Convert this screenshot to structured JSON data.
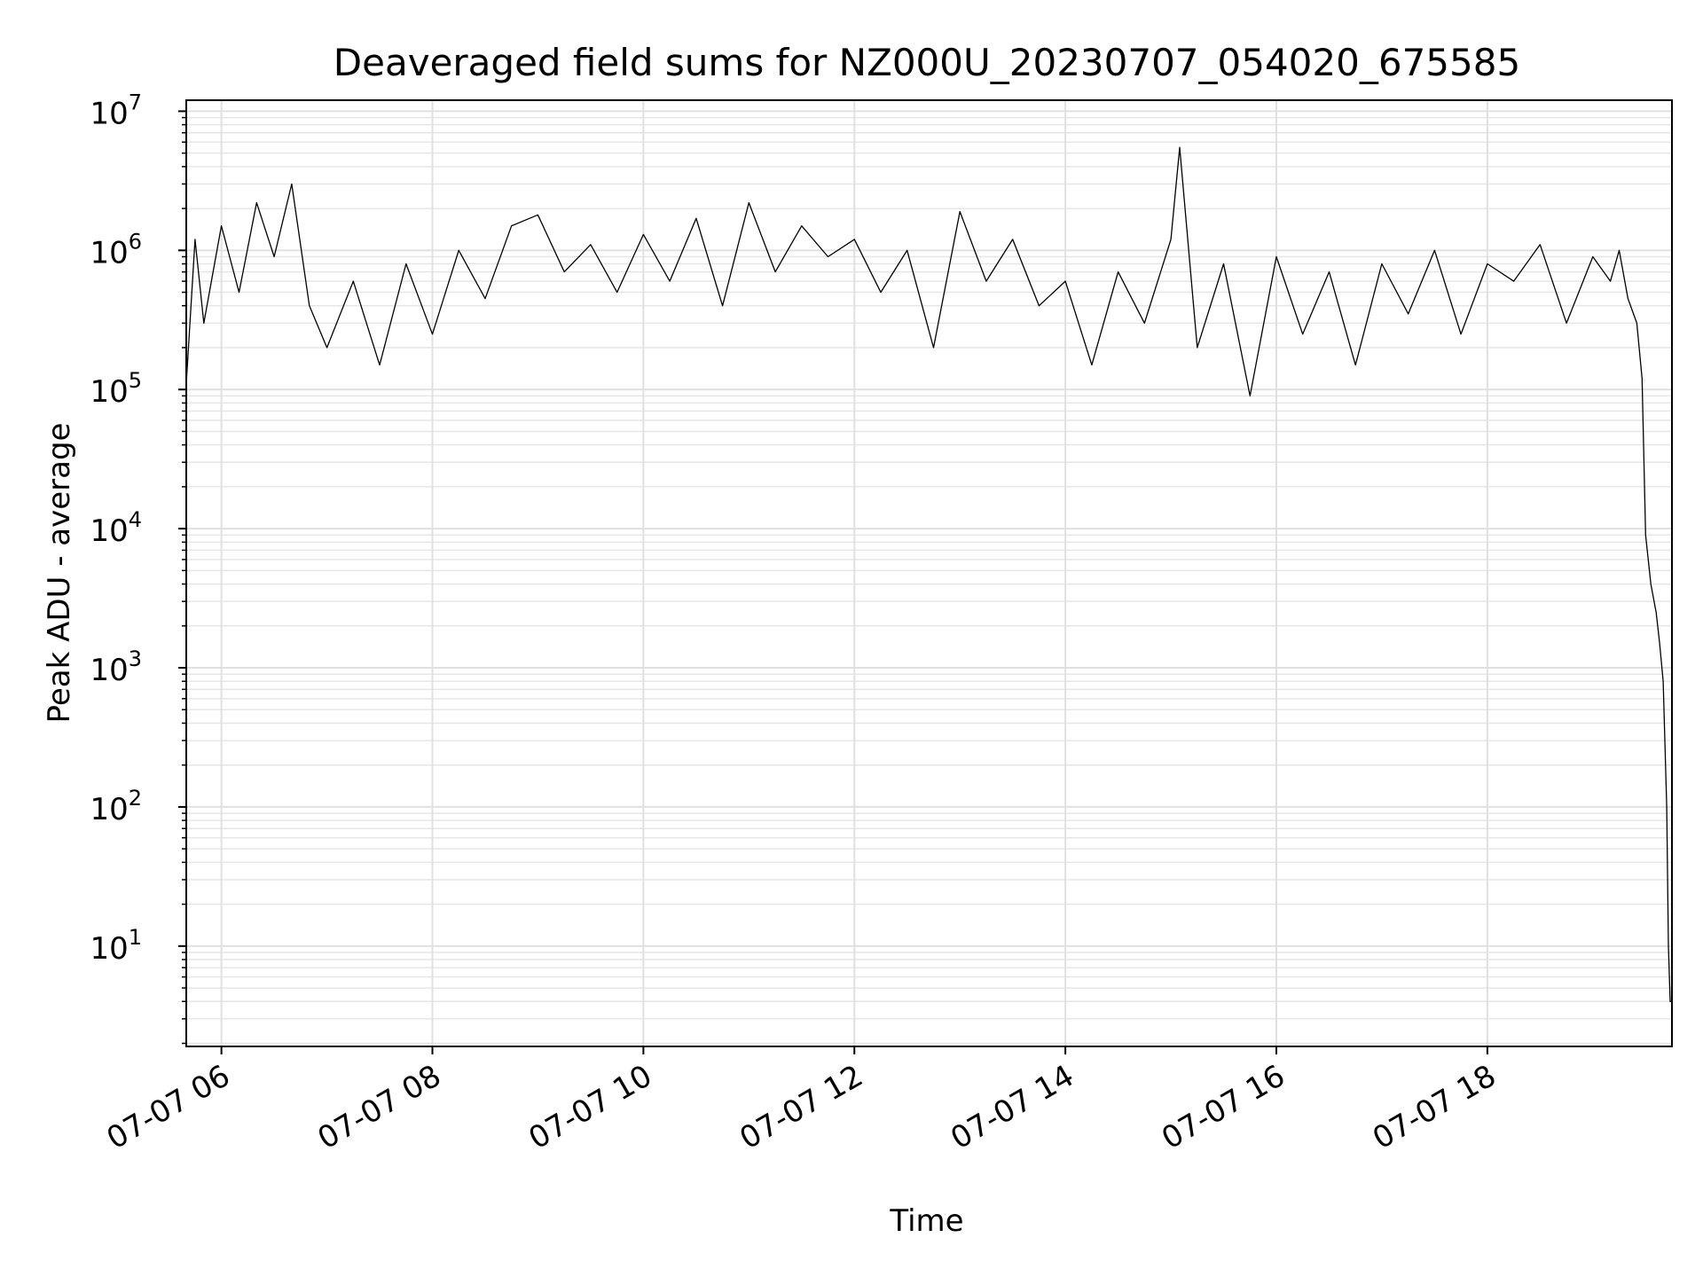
{
  "chart_data": {
    "type": "line",
    "title": "Deaveraged field sums for NZ000U_20230707_054020_675585",
    "xlabel": "Time",
    "ylabel": "Peak ADU - average",
    "x_scale": "time",
    "y_scale": "log",
    "xlim": [
      "2023-07-07 05:40",
      "2023-07-07 19:45"
    ],
    "ylim": [
      1.9,
      12000000
    ],
    "x_ticks": [
      {
        "value": "2023-07-07 06:00",
        "label": "07-07 06"
      },
      {
        "value": "2023-07-07 08:00",
        "label": "07-07 08"
      },
      {
        "value": "2023-07-07 10:00",
        "label": "07-07 10"
      },
      {
        "value": "2023-07-07 12:00",
        "label": "07-07 12"
      },
      {
        "value": "2023-07-07 14:00",
        "label": "07-07 14"
      },
      {
        "value": "2023-07-07 16:00",
        "label": "07-07 16"
      },
      {
        "value": "2023-07-07 18:00",
        "label": "07-07 18"
      }
    ],
    "y_ticks": [
      {
        "value": 10,
        "base": "10",
        "exp": "1"
      },
      {
        "value": 100,
        "base": "10",
        "exp": "2"
      },
      {
        "value": 1000,
        "base": "10",
        "exp": "3"
      },
      {
        "value": 10000,
        "base": "10",
        "exp": "4"
      },
      {
        "value": 100000,
        "base": "10",
        "exp": "5"
      },
      {
        "value": 1000000,
        "base": "10",
        "exp": "6"
      },
      {
        "value": 10000000,
        "base": "10",
        "exp": "7"
      }
    ],
    "grid": true,
    "grid_minor": true,
    "legend": "none",
    "series": [
      {
        "color": "#000000",
        "x": [
          "2023-07-07 05:40",
          "2023-07-07 05:45",
          "2023-07-07 05:50",
          "2023-07-07 06:00",
          "2023-07-07 06:10",
          "2023-07-07 06:20",
          "2023-07-07 06:30",
          "2023-07-07 06:40",
          "2023-07-07 06:50",
          "2023-07-07 07:00",
          "2023-07-07 07:15",
          "2023-07-07 07:30",
          "2023-07-07 07:45",
          "2023-07-07 08:00",
          "2023-07-07 08:15",
          "2023-07-07 08:30",
          "2023-07-07 08:45",
          "2023-07-07 09:00",
          "2023-07-07 09:15",
          "2023-07-07 09:30",
          "2023-07-07 09:45",
          "2023-07-07 10:00",
          "2023-07-07 10:15",
          "2023-07-07 10:30",
          "2023-07-07 10:45",
          "2023-07-07 11:00",
          "2023-07-07 11:15",
          "2023-07-07 11:30",
          "2023-07-07 11:45",
          "2023-07-07 12:00",
          "2023-07-07 12:15",
          "2023-07-07 12:30",
          "2023-07-07 12:45",
          "2023-07-07 13:00",
          "2023-07-07 13:15",
          "2023-07-07 13:30",
          "2023-07-07 13:45",
          "2023-07-07 14:00",
          "2023-07-07 14:15",
          "2023-07-07 14:30",
          "2023-07-07 14:45",
          "2023-07-07 15:00",
          "2023-07-07 15:05",
          "2023-07-07 15:15",
          "2023-07-07 15:30",
          "2023-07-07 15:45",
          "2023-07-07 16:00",
          "2023-07-07 16:15",
          "2023-07-07 16:30",
          "2023-07-07 16:45",
          "2023-07-07 17:00",
          "2023-07-07 17:15",
          "2023-07-07 17:30",
          "2023-07-07 17:45",
          "2023-07-07 18:00",
          "2023-07-07 18:15",
          "2023-07-07 18:30",
          "2023-07-07 18:45",
          "2023-07-07 19:00",
          "2023-07-07 19:10",
          "2023-07-07 19:15",
          "2023-07-07 19:20",
          "2023-07-07 19:25",
          "2023-07-07 19:28",
          "2023-07-07 19:30",
          "2023-07-07 19:33",
          "2023-07-07 19:36",
          "2023-07-07 19:38",
          "2023-07-07 19:40",
          "2023-07-07 19:42",
          "2023-07-07 19:43",
          "2023-07-07 19:44",
          "2023-07-07 19:45"
        ],
        "y": [
          110000,
          1200000,
          300000,
          1500000,
          500000,
          2200000,
          900000,
          3000000,
          400000,
          200000,
          600000,
          150000,
          800000,
          250000,
          1000000,
          450000,
          1500000,
          1800000,
          700000,
          1100000,
          500000,
          1300000,
          600000,
          1700000,
          400000,
          2200000,
          700000,
          1500000,
          900000,
          1200000,
          500000,
          1000000,
          200000,
          1900000,
          600000,
          1200000,
          400000,
          600000,
          150000,
          700000,
          300000,
          1200000,
          5500000,
          200000,
          800000,
          90000,
          900000,
          250000,
          700000,
          150000,
          800000,
          350000,
          1000000,
          250000,
          800000,
          600000,
          1100000,
          300000,
          900000,
          600000,
          1000000,
          450000,
          300000,
          120000,
          9000,
          4000,
          2500,
          1500,
          800,
          100,
          10,
          4,
          4
        ]
      }
    ]
  }
}
